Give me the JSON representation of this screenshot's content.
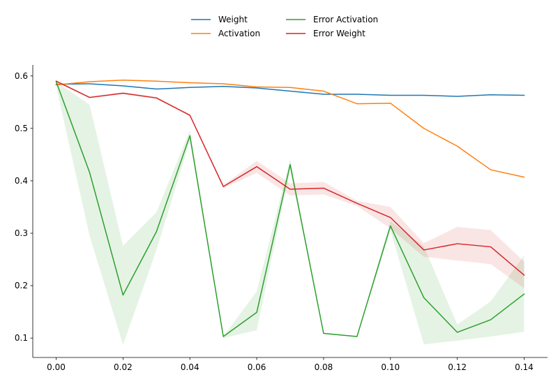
{
  "chart_data": {
    "type": "line",
    "title": "",
    "xlabel": "",
    "ylabel": "",
    "xlim": [
      -0.007,
      0.147
    ],
    "ylim": [
      0.063,
      0.621
    ],
    "grid": false,
    "legend": {
      "placement": "top-center",
      "columns": 2
    },
    "xticks": [
      0.0,
      0.02,
      0.04,
      0.06,
      0.08,
      0.1,
      0.12,
      0.14
    ],
    "xtick_labels": [
      "0.00",
      "0.02",
      "0.04",
      "0.06",
      "0.08",
      "0.10",
      "0.12",
      "0.14"
    ],
    "yticks": [
      0.1,
      0.2,
      0.3,
      0.4,
      0.5,
      0.6
    ],
    "ytick_labels": [
      "0.1",
      "0.2",
      "0.3",
      "0.4",
      "0.5",
      "0.6"
    ],
    "x": [
      0.0,
      0.01,
      0.02,
      0.03,
      0.04,
      0.05,
      0.06,
      0.07,
      0.08,
      0.09,
      0.1,
      0.11,
      0.12,
      0.13,
      0.14
    ],
    "series": [
      {
        "name": "Weight",
        "color": "#1f77b4",
        "values": [
          0.584,
          0.585,
          0.581,
          0.575,
          0.578,
          0.58,
          0.577,
          0.571,
          0.565,
          0.565,
          0.563,
          0.563,
          0.561,
          0.564,
          0.563
        ]
      },
      {
        "name": "Activation",
        "color": "#ff7f0e",
        "values": [
          0.583,
          0.589,
          0.592,
          0.59,
          0.587,
          0.585,
          0.579,
          0.578,
          0.571,
          0.547,
          0.548,
          0.5,
          0.466,
          0.421,
          0.407
        ]
      },
      {
        "name": "Error Activation",
        "color": "#2ca02c",
        "values": [
          0.589,
          0.416,
          0.182,
          0.303,
          0.486,
          0.103,
          0.149,
          0.431,
          0.109,
          0.103,
          0.314,
          0.177,
          0.111,
          0.135,
          0.184
        ],
        "band_low": [
          0.58,
          0.295,
          0.087,
          0.268,
          0.476,
          0.1,
          0.115,
          0.42,
          0.108,
          0.102,
          0.305,
          0.088,
          0.095,
          0.103,
          0.112
        ],
        "band_high": [
          0.589,
          0.545,
          0.276,
          0.34,
          0.496,
          0.103,
          0.189,
          0.441,
          0.11,
          0.104,
          0.323,
          0.275,
          0.126,
          0.17,
          0.258
        ]
      },
      {
        "name": "Error Weight",
        "color": "#d62728",
        "values": [
          0.59,
          0.559,
          0.567,
          0.558,
          0.525,
          0.389,
          0.427,
          0.384,
          0.386,
          0.357,
          0.33,
          0.268,
          0.28,
          0.274,
          0.22
        ],
        "band_low": [
          0.588,
          0.557,
          0.565,
          0.556,
          0.523,
          0.386,
          0.415,
          0.372,
          0.374,
          0.352,
          0.309,
          0.255,
          0.248,
          0.241,
          0.195
        ],
        "band_high": [
          0.592,
          0.561,
          0.569,
          0.56,
          0.527,
          0.392,
          0.438,
          0.395,
          0.398,
          0.362,
          0.35,
          0.281,
          0.312,
          0.306,
          0.246
        ]
      }
    ]
  }
}
